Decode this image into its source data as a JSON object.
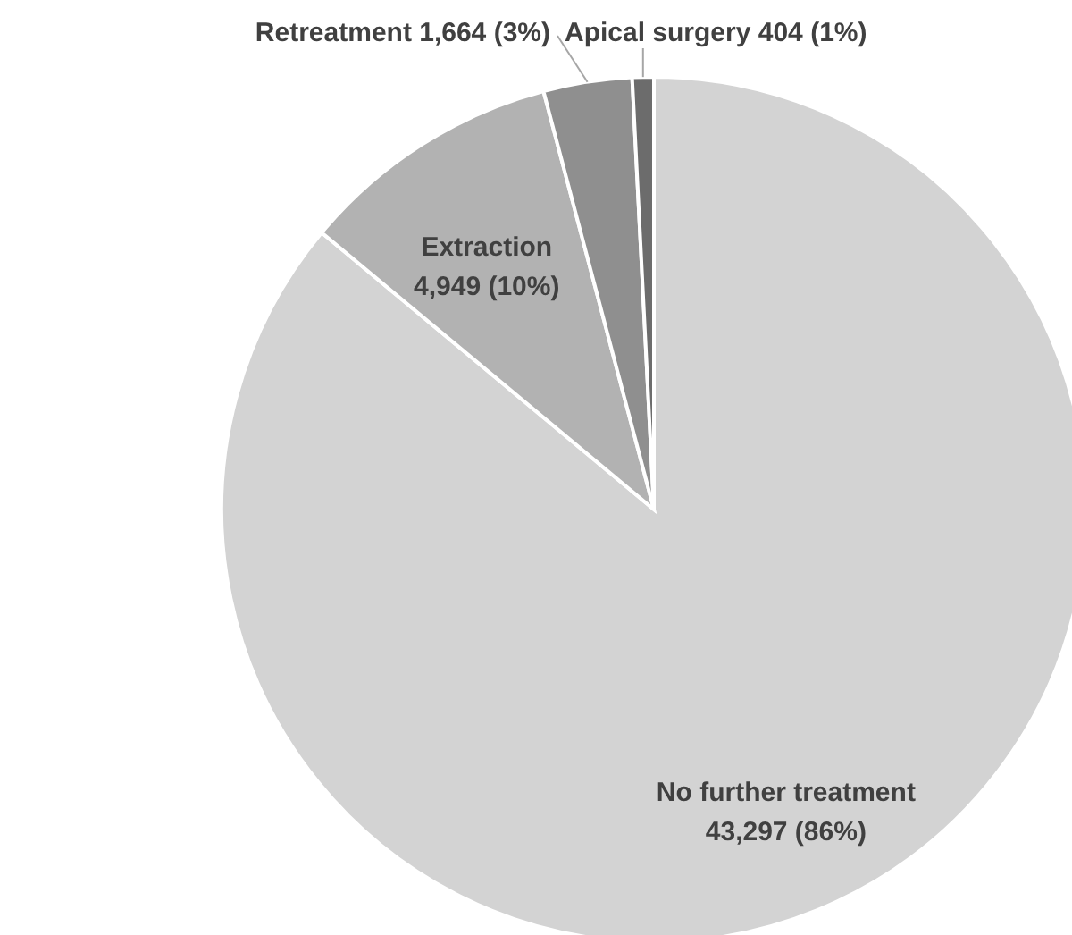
{
  "chart_data": {
    "type": "pie",
    "categories": [
      "No further treatment",
      "Extraction",
      "Retreatment",
      "Apical surgery"
    ],
    "values": [
      43297,
      4949,
      1664,
      404
    ],
    "colors": [
      "#d3d3d3",
      "#b2b2b2",
      "#8f8f8f",
      "#6c6c6c"
    ],
    "value_labels": [
      "43,297 (86%)",
      "4,949 (10%)",
      "1,664 (3%)",
      "404 (1%)"
    ]
  }
}
